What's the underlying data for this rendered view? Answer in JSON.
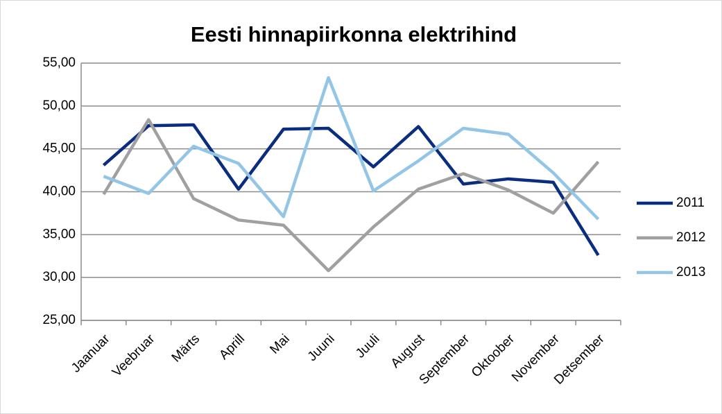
{
  "chart_data": {
    "type": "line",
    "title": "Eesti hinnapiirkonna elektrihind",
    "categories": [
      "Jaanuar",
      "Veebruar",
      "Märts",
      "Aprill",
      "Mai",
      "Juuni",
      "Juuli",
      "August",
      "September",
      "Oktoober",
      "November",
      "Detsember"
    ],
    "series": [
      {
        "name": "2011",
        "color": "#0a2d80",
        "values": [
          43.1,
          47.7,
          47.8,
          40.3,
          47.3,
          47.4,
          42.9,
          47.6,
          40.9,
          41.5,
          41.1,
          32.6
        ]
      },
      {
        "name": "2012",
        "color": "#a0a0a0",
        "values": [
          39.7,
          48.4,
          39.2,
          36.7,
          36.1,
          30.8,
          35.9,
          40.3,
          42.1,
          40.2,
          37.5,
          43.5
        ]
      },
      {
        "name": "2013",
        "color": "#92c5e6",
        "values": [
          41.8,
          39.8,
          45.3,
          43.3,
          37.1,
          53.3,
          40.1,
          43.6,
          47.4,
          46.7,
          42.2,
          36.8
        ]
      }
    ],
    "ylim": [
      25,
      55
    ],
    "yticks": [
      {
        "value": 25,
        "label": "25,00"
      },
      {
        "value": 30,
        "label": "30,00"
      },
      {
        "value": 35,
        "label": "35,00"
      },
      {
        "value": 40,
        "label": "40,00"
      },
      {
        "value": 45,
        "label": "45,00"
      },
      {
        "value": 50,
        "label": "50,00"
      },
      {
        "value": 55,
        "label": "55,00"
      }
    ],
    "grid": true,
    "legend": "right"
  }
}
